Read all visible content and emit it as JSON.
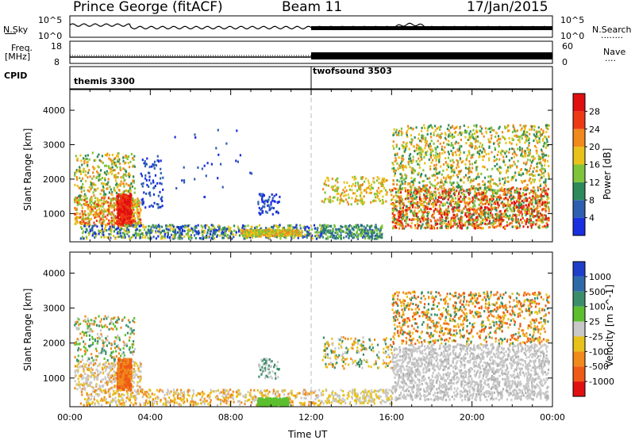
{
  "header": {
    "station": "Prince George (fitACF)",
    "beam": "Beam 11",
    "date": "17/Jan/2015"
  },
  "labels": {
    "nsky": "N.Sky",
    "nsearch": "N.Search",
    "freq": "Freq.",
    "mhz": "[MHz]",
    "nave": "Nave",
    "cpid": "CPID",
    "dotted": "........",
    "dotted_short": "....",
    "sky_hi": "10^5",
    "sky_lo": "10^0",
    "search_hi": "10^5",
    "search_lo": "10^0",
    "freq_hi": "18",
    "freq_lo": "8",
    "nave_hi": "60",
    "nave_lo": "0"
  },
  "cpid": [
    {
      "name": "themis 3300"
    },
    {
      "name": "twofsound 3503"
    }
  ],
  "chart_data": [
    {
      "type": "heatmap",
      "title": "",
      "xlabel": "Time UT",
      "ylabel": "Slant Range [km]",
      "x_ticks": [
        "00:00",
        "04:00",
        "08:00",
        "12:00",
        "16:00",
        "20:00",
        "00:00"
      ],
      "y_ticks": [
        "1000",
        "2000",
        "3000",
        "4000"
      ],
      "xlim": [
        0,
        24
      ],
      "ylim": [
        180,
        4600
      ],
      "colorbar": {
        "label": "Power [dB]",
        "ticks": [
          "4",
          "8",
          "12",
          "16",
          "20",
          "24",
          "28"
        ],
        "colors": [
          "#1a2fe0",
          "#2f5fb0",
          "#2e8a5a",
          "#7fc43a",
          "#e8c21a",
          "#f08a1c",
          "#ee3a14",
          "#e01010"
        ]
      }
    },
    {
      "type": "heatmap",
      "title": "",
      "xlabel": "Time UT",
      "ylabel": "Slant Range [km]",
      "x_ticks": [
        "00:00",
        "04:00",
        "08:00",
        "12:00",
        "16:00",
        "20:00",
        "00:00"
      ],
      "y_ticks": [
        "1000",
        "2000",
        "3000",
        "4000"
      ],
      "xlim": [
        0,
        24
      ],
      "ylim": [
        180,
        4600
      ],
      "colorbar": {
        "label": "Velocity [m s^-1]",
        "ticks": [
          "1000",
          "500",
          "100",
          "25",
          "-25",
          "-100",
          "-500",
          "-1000"
        ],
        "colors": [
          "#1f3fc8",
          "#2f6aa8",
          "#3a8f6a",
          "#5cbf2f",
          "#c8c8c8",
          "#e8c21a",
          "#f08a1c",
          "#ef5a14",
          "#e01010"
        ]
      }
    }
  ],
  "colors": {
    "grey": "#c8c8c8"
  }
}
